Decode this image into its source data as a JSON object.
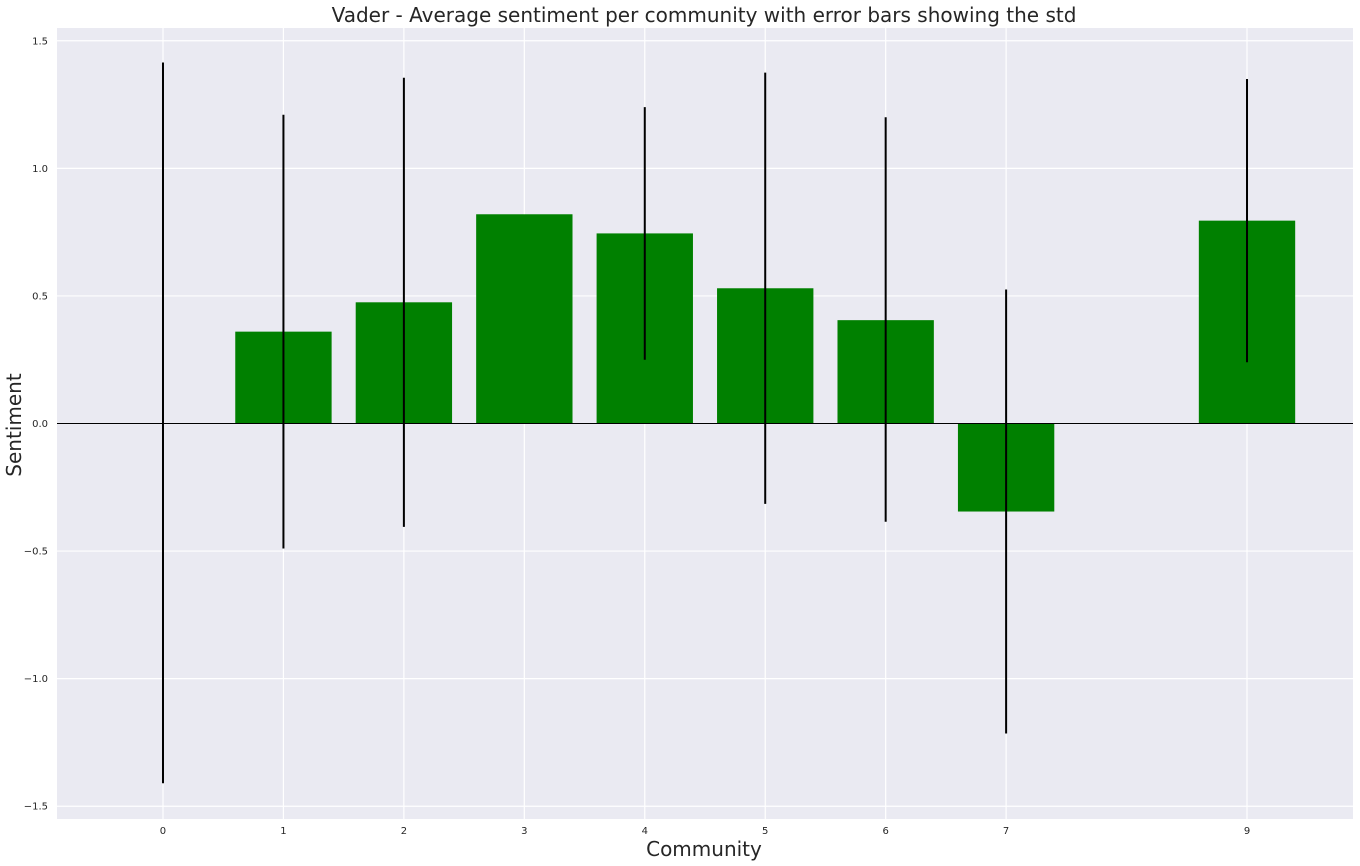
{
  "chart_data": {
    "type": "bar",
    "title": "Vader - Average sentiment per community with error bars showing the std",
    "xlabel": "Community",
    "ylabel": "Sentiment",
    "categories": [
      "0",
      "1",
      "2",
      "3",
      "4",
      "5",
      "6",
      "7",
      "9"
    ],
    "x": [
      0,
      1,
      2,
      3,
      4,
      5,
      6,
      7,
      9
    ],
    "values": [
      0.0,
      0.36,
      0.475,
      0.82,
      0.745,
      0.53,
      0.405,
      -0.345,
      0.795
    ],
    "error_bars": {
      "lower": [
        -1.41,
        -0.49,
        -0.405,
        null,
        0.25,
        -0.315,
        -0.385,
        -1.215,
        0.24
      ],
      "upper": [
        1.415,
        1.21,
        1.355,
        null,
        1.24,
        1.375,
        1.2,
        0.525,
        1.35
      ]
    },
    "xlim": [
      -0.88,
      9.88
    ],
    "ylim": [
      -1.55,
      1.55
    ],
    "xticks": [
      0,
      1,
      2,
      3,
      4,
      5,
      6,
      7,
      9
    ],
    "yticks": [
      -1.5,
      -1.0,
      -0.5,
      0.0,
      0.5,
      1.0,
      1.5
    ],
    "ytick_labels": [
      "−1.5",
      "−1.0",
      "−0.5",
      "0.0",
      "0.5",
      "1.0",
      "1.5"
    ],
    "grid": true,
    "zero_line": true,
    "colors": {
      "bar": "#008000",
      "error_bar": "#000000",
      "background": "#eaeaf2",
      "grid": "#ffffff",
      "zero_line": "#000000"
    }
  }
}
